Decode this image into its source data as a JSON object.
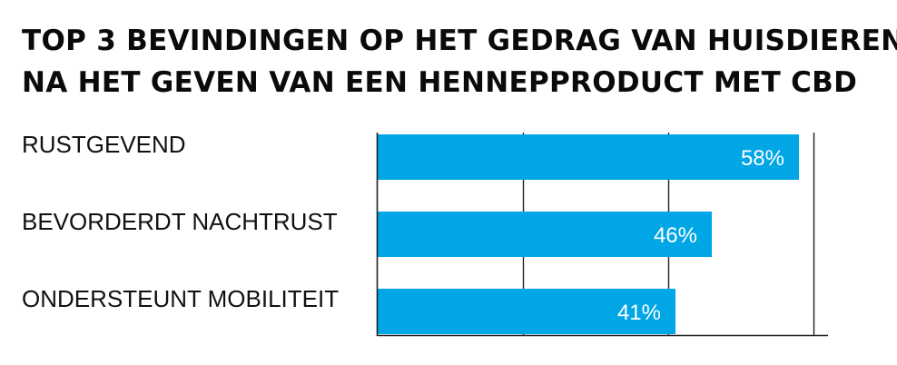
{
  "colors": {
    "bar": "#00A6E6",
    "text": "#111111",
    "gridline": "#222222"
  },
  "chart_data": {
    "type": "bar",
    "orientation": "horizontal",
    "title": "TOP 3 BEVINDINGEN OP HET GEDRAG VAN HUISDIEREN NA HET GEVEN VAN EEN HENNEPPRODUCT MET CBD",
    "title_lines": [
      "TOP 3 BEVINDINGEN OP HET GEDRAG VAN HUISDIEREN",
      "NA HET GEVEN VAN EEN HENNEPPRODUCT MET CBD"
    ],
    "categories": [
      "RUSTGEVEND",
      "BEVORDERDT NACHTRUST",
      "ONDERSTEUNT MOBILITEIT"
    ],
    "values": [
      58,
      46,
      41
    ],
    "value_labels": [
      "58%",
      "46%",
      "41%"
    ],
    "xlim": [
      0,
      62
    ],
    "gridlines_at": [
      0,
      20,
      40,
      60
    ],
    "grid": true,
    "legend": "none"
  }
}
